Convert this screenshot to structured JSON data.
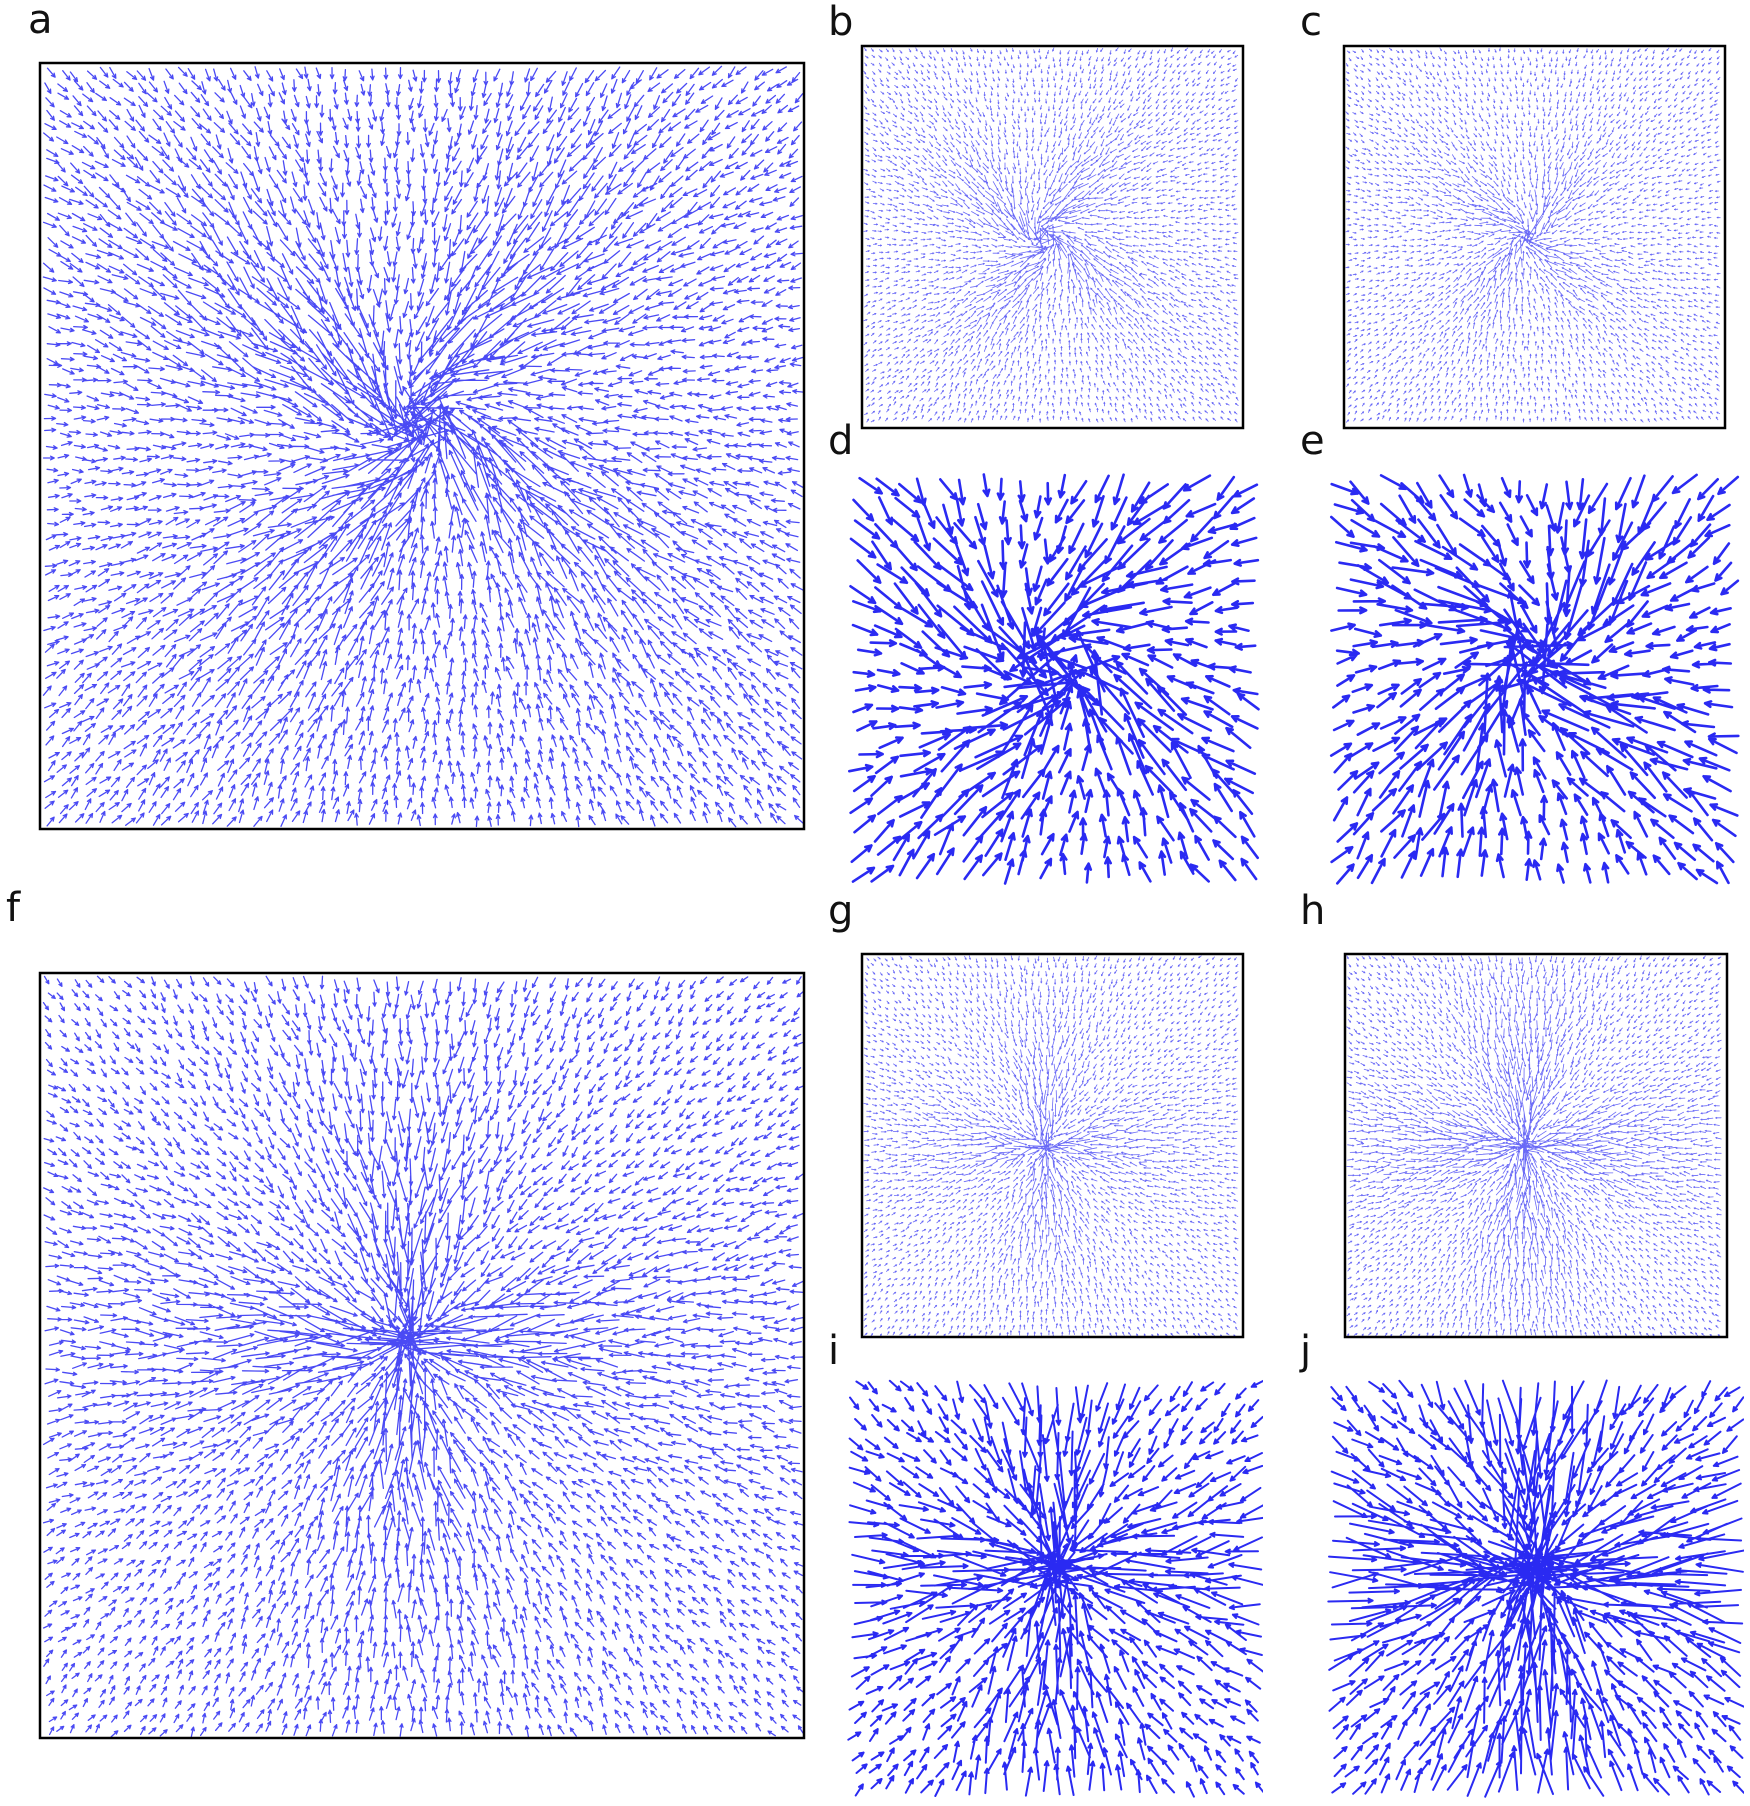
{
  "panels": [
    {
      "label": "a"
    },
    {
      "label": "b"
    },
    {
      "label": "c"
    },
    {
      "label": "d"
    },
    {
      "label": "e"
    },
    {
      "label": "f"
    },
    {
      "label": "g"
    },
    {
      "label": "h"
    },
    {
      "label": "i"
    },
    {
      "label": "j"
    }
  ]
}
